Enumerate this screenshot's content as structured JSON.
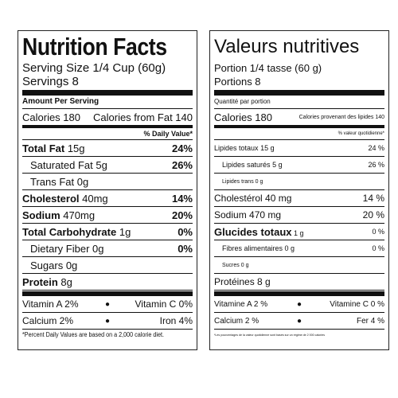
{
  "panels": [
    {
      "title": "Nutrition Facts",
      "serving_size": "Serving Size 1/4 Cup (60g)",
      "servings": "Servings 8",
      "amount_per_serving": "Amount Per Serving",
      "calories": "Calories 180",
      "calories_from_fat": "Calories from Fat 140",
      "daily_value_header": "% Daily Value*",
      "nutrients": [
        {
          "name": "Total Fat",
          "amount": "15g",
          "dv": "24%",
          "sub": [
            {
              "name": "Saturated Fat",
              "amount": "5g",
              "dv": "26%"
            },
            {
              "name": "Trans Fat",
              "amount": "0g"
            }
          ]
        },
        {
          "name": "Cholesterol",
          "amount": "40mg",
          "dv": "14%"
        },
        {
          "name": "Sodium",
          "amount": "470mg",
          "dv": "20%"
        },
        {
          "name": "Total Carbohydrate",
          "amount": "1g",
          "dv": "0%",
          "sub": [
            {
              "name": "Dietary Fiber",
              "amount": "0g",
              "dv": "0%"
            },
            {
              "name": "Sugars",
              "amount": "0g"
            }
          ]
        },
        {
          "name": "Protein",
          "amount": "8g"
        }
      ],
      "vitamins": [
        [
          "Vitamin A 2%",
          "Vitamin C 0%"
        ],
        [
          "Calcium 2%",
          "Iron 4%"
        ]
      ],
      "footnote": "*Percent Daily Values are based on a 2,000 calorie diet."
    },
    {
      "title": "Valeurs nutritives",
      "serving_size": "Portion 1/4 tasse (60 g)",
      "servings": "Portions 8",
      "amount_per_serving": "Quantité par portion",
      "calories": "Calories 180",
      "calories_from_fat": "Calories provenant des lipides 140",
      "daily_value_header": "% valeur quotidienne*",
      "nutrients": [
        {
          "name": "Lipides totaux",
          "amount": "15 g",
          "dv": "24 %",
          "sub": [
            {
              "name": "Lipides saturés",
              "amount": "5 g",
              "dv": "26 %"
            },
            {
              "name": "Lipides trans",
              "amount": "0 g"
            }
          ]
        },
        {
          "name": "Cholestérol",
          "amount": "40 mg",
          "dv": "14 %"
        },
        {
          "name": "Sodium",
          "amount": "470 mg",
          "dv": "20 %"
        },
        {
          "name": "Glucides totaux",
          "amount": "1 g",
          "dv": "0 %",
          "sub": [
            {
              "name": "Fibres alimentaires",
              "amount": "0 g",
              "dv": "0 %"
            },
            {
              "name": "Sucres",
              "amount": "0 g"
            }
          ]
        },
        {
          "name": "Protéines",
          "amount": "8 g"
        }
      ],
      "vitamins": [
        [
          "Vitamine A 2 %",
          "Vitamine C 0 %"
        ],
        [
          "Calcium 2 %",
          "Fer 4 %"
        ]
      ],
      "footnote": "*Les pourcentages de la valeur quotidienne sont basés sur un régime de 2 000 calories"
    }
  ]
}
